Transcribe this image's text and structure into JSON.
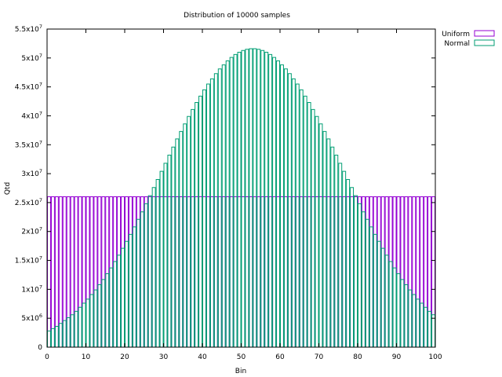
{
  "chart_data": {
    "type": "bar",
    "title": "Distribution of 10000 samples",
    "xlabel": "Bin",
    "ylabel": "Qtd",
    "xlim": [
      0,
      100
    ],
    "ylim": [
      0,
      55000000
    ],
    "xticks": [
      0,
      10,
      20,
      30,
      40,
      50,
      60,
      70,
      80,
      90,
      100
    ],
    "xtick_labels": [
      "0",
      "10",
      "20",
      "30",
      "40",
      "50",
      "60",
      "70",
      "80",
      "90",
      "100"
    ],
    "yticks": [
      0,
      5000000,
      10000000,
      15000000,
      20000000,
      25000000,
      30000000,
      35000000,
      40000000,
      45000000,
      50000000,
      55000000
    ],
    "ytick_labels": [
      {
        "mant": "0",
        "exp": ""
      },
      {
        "mant": "5x10",
        "exp": "6"
      },
      {
        "mant": "1x10",
        "exp": "7"
      },
      {
        "mant": "1.5x10",
        "exp": "7"
      },
      {
        "mant": "2x10",
        "exp": "7"
      },
      {
        "mant": "2.5x10",
        "exp": "7"
      },
      {
        "mant": "3x10",
        "exp": "7"
      },
      {
        "mant": "3.5x10",
        "exp": "7"
      },
      {
        "mant": "4x10",
        "exp": "7"
      },
      {
        "mant": "4.5x10",
        "exp": "7"
      },
      {
        "mant": "5x10",
        "exp": "7"
      },
      {
        "mant": "5.5x10",
        "exp": "7"
      }
    ],
    "legend_position": "top-right",
    "grid": false,
    "bins": [
      0,
      1,
      2,
      3,
      4,
      5,
      6,
      7,
      8,
      9,
      10,
      11,
      12,
      13,
      14,
      15,
      16,
      17,
      18,
      19,
      20,
      21,
      22,
      23,
      24,
      25,
      26,
      27,
      28,
      29,
      30,
      31,
      32,
      33,
      34,
      35,
      36,
      37,
      38,
      39,
      40,
      41,
      42,
      43,
      44,
      45,
      46,
      47,
      48,
      49,
      50,
      51,
      52,
      53,
      54,
      55,
      56,
      57,
      58,
      59,
      60,
      61,
      62,
      63,
      64,
      65,
      66,
      67,
      68,
      69,
      70,
      71,
      72,
      73,
      74,
      75,
      76,
      77,
      78,
      79,
      80,
      81,
      82,
      83,
      84,
      85,
      86,
      87,
      88,
      89,
      90,
      91,
      92,
      93,
      94,
      95,
      96,
      97,
      98,
      99
    ],
    "series": [
      {
        "name": "Uniform",
        "color": "#9400d3",
        "values": [
          26000000,
          26000000,
          26000000,
          26000000,
          26000000,
          26000000,
          26000000,
          26000000,
          26000000,
          26000000,
          26000000,
          26000000,
          26000000,
          26000000,
          26000000,
          26000000,
          26000000,
          26000000,
          26000000,
          26000000,
          26000000,
          26000000,
          26000000,
          26000000,
          26000000,
          26000000,
          26000000,
          26000000,
          26000000,
          26000000,
          26000000,
          26000000,
          26000000,
          26000000,
          26000000,
          26000000,
          26000000,
          26000000,
          26000000,
          26000000,
          26000000,
          26000000,
          26000000,
          26000000,
          26000000,
          26000000,
          26000000,
          26000000,
          26000000,
          26000000,
          26000000,
          26000000,
          26000000,
          26000000,
          26000000,
          26000000,
          26000000,
          26000000,
          26000000,
          26000000,
          26000000,
          26000000,
          26000000,
          26000000,
          26000000,
          26000000,
          26000000,
          26000000,
          26000000,
          26000000,
          26000000,
          26000000,
          26000000,
          26000000,
          26000000,
          26000000,
          26000000,
          26000000,
          26000000,
          26000000,
          26000000,
          26000000,
          26000000,
          26000000,
          26000000,
          26000000,
          26000000,
          26000000,
          26000000,
          26000000,
          26000000,
          26000000,
          26000000,
          26000000,
          26000000,
          26000000,
          26000000,
          26000000,
          26000000,
          26000000
        ]
      },
      {
        "name": "Normal",
        "color": "#009e73",
        "values": [
          2800000,
          3200000,
          3600000,
          4100000,
          4600000,
          5100000,
          5600000,
          6200000,
          6900000,
          7600000,
          8300000,
          9100000,
          9900000,
          10800000,
          11700000,
          12700000,
          13700000,
          14800000,
          15900000,
          17100000,
          18300000,
          19500000,
          20800000,
          22100000,
          23400000,
          24800000,
          26200000,
          27600000,
          29000000,
          30400000,
          31800000,
          33200000,
          34600000,
          36000000,
          37300000,
          38600000,
          39900000,
          41100000,
          42300000,
          43400000,
          44500000,
          45500000,
          46400000,
          47300000,
          48100000,
          48800000,
          49500000,
          50100000,
          50600000,
          51000000,
          51300000,
          51500000,
          51600000,
          51600000,
          51500000,
          51300000,
          51000000,
          50600000,
          50100000,
          49500000,
          48800000,
          48100000,
          47300000,
          46400000,
          45500000,
          44500000,
          43400000,
          42300000,
          41100000,
          39900000,
          38600000,
          37300000,
          36000000,
          34600000,
          33200000,
          31800000,
          30400000,
          29000000,
          27600000,
          26200000,
          24800000,
          23400000,
          22100000,
          20800000,
          19500000,
          18300000,
          17100000,
          15900000,
          14800000,
          13700000,
          12700000,
          11700000,
          10800000,
          9900000,
          9100000,
          8300000,
          7600000,
          6900000,
          6200000,
          5600000
        ]
      }
    ]
  }
}
